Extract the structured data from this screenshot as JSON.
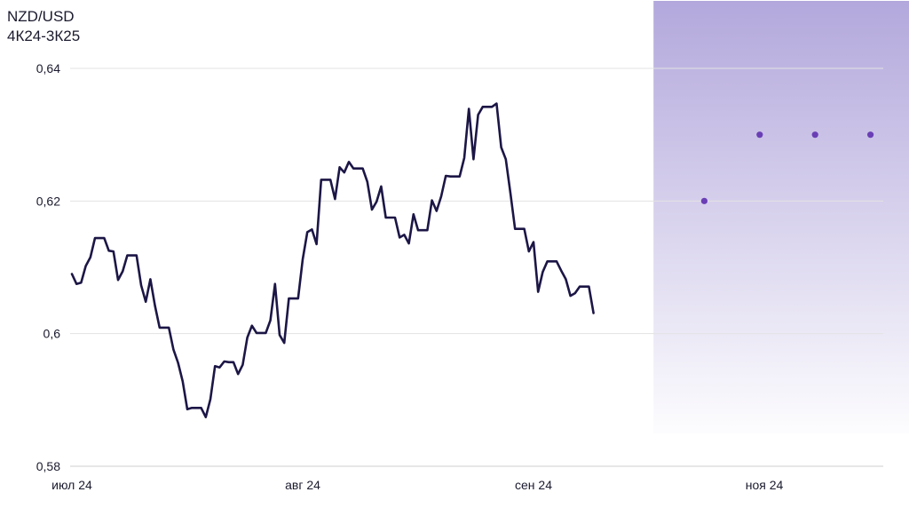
{
  "header": {
    "title": "NZD/USD",
    "subtitle": "4К24-3К25"
  },
  "chart_data": {
    "type": "line",
    "title": "NZD/USD",
    "subtitle": "4К24-3К25",
    "xlabel": "",
    "ylabel": "",
    "ylim": [
      0.58,
      0.64
    ],
    "y_ticks": [
      "0,64",
      "0,62",
      "0,6",
      "0,58"
    ],
    "y_tick_values": [
      0.64,
      0.62,
      0.6,
      0.58
    ],
    "x_ticks": [
      "июл 24",
      "авг 24",
      "сен 24",
      "ноя 24"
    ],
    "x_tick_positions": [
      0,
      50,
      100,
      150
    ],
    "grid": true,
    "colors": {
      "line": "#1c1646",
      "forecast_point": "#6a3fb5",
      "forecast_band_top": "#b3a8dc",
      "grid": "#e3e3e3"
    },
    "forecast_region_start": 126,
    "series": [
      {
        "values": [
          0.609,
          0.6075,
          0.6077,
          0.6102,
          0.6115,
          0.6144,
          0.6144,
          0.6144,
          0.6125,
          0.6124,
          0.6081,
          0.6094,
          0.6118,
          0.6118,
          0.6118,
          0.6073,
          0.6048,
          0.6082,
          0.6042,
          0.6009,
          0.6009,
          0.6009,
          0.5976,
          0.5956,
          0.5928,
          0.5886,
          0.5888,
          0.5888,
          0.5888,
          0.5874,
          0.5901,
          0.5951,
          0.5949,
          0.5958,
          0.5957,
          0.5957,
          0.5939,
          0.5953,
          0.5994,
          0.6012,
          0.6001,
          0.6001,
          0.6001,
          0.602,
          0.6075,
          0.5998,
          0.5986,
          0.6053,
          0.6053,
          0.6053,
          0.6112,
          0.6153,
          0.6157,
          0.6135,
          0.6232,
          0.6232,
          0.6232,
          0.6203,
          0.6251,
          0.6243,
          0.6259,
          0.6249,
          0.6249,
          0.6249,
          0.6229,
          0.6187,
          0.6199,
          0.6222,
          0.6175,
          0.6175,
          0.6175,
          0.6145,
          0.6149,
          0.6136,
          0.618,
          0.6156,
          0.6156,
          0.6156,
          0.6201,
          0.6185,
          0.6207,
          0.6238,
          0.6237,
          0.6237,
          0.6237,
          0.6265,
          0.6339,
          0.6263,
          0.633,
          0.6342,
          0.6342,
          0.6342,
          0.6347,
          0.6281,
          0.6263,
          0.6212,
          0.6158,
          0.6158,
          0.6158,
          0.6124,
          0.6138,
          0.6063,
          0.6093,
          0.6109,
          0.6109,
          0.6109,
          0.6095,
          0.6082,
          0.6057,
          0.6061,
          0.6071,
          0.6071,
          0.6071,
          0.6031
        ]
      },
      {
        "type": "scatter",
        "x": [
          137,
          149,
          161,
          173
        ],
        "values": [
          0.62,
          0.63,
          0.63,
          0.63
        ]
      }
    ]
  }
}
